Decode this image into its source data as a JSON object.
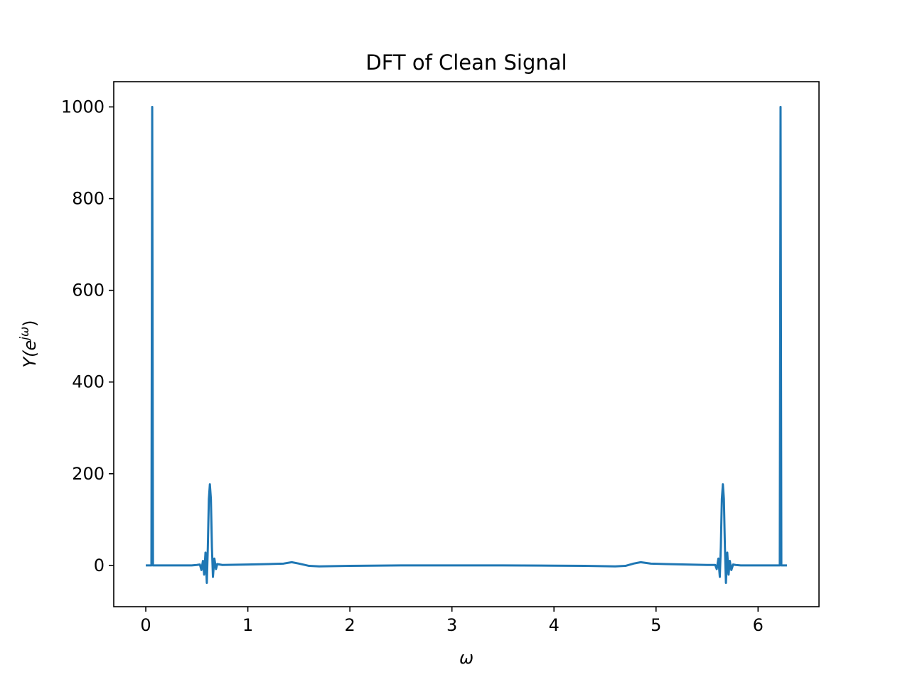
{
  "chart_data": {
    "type": "line",
    "title": "DFT of Clean Signal",
    "xlabel": "ω",
    "ylabel": {
      "base": "Y(e",
      "sup": "jω",
      "close": ")"
    },
    "xlim": [
      -0.314,
      6.597
    ],
    "ylim": [
      -90,
      1055
    ],
    "xticks": [
      0,
      1,
      2,
      3,
      4,
      5,
      6
    ],
    "yticks": [
      0,
      200,
      400,
      600,
      800,
      1000
    ],
    "grid": false,
    "color": "#1f77b4",
    "series": [
      {
        "values": [
          [
            0.0,
            0
          ],
          [
            0.055,
            0
          ],
          [
            0.0628,
            1000
          ],
          [
            0.0705,
            0
          ],
          [
            0.45,
            0
          ],
          [
            0.5,
            1
          ],
          [
            0.53,
            2
          ],
          [
            0.545,
            -10
          ],
          [
            0.56,
            10
          ],
          [
            0.572,
            -20
          ],
          [
            0.585,
            28
          ],
          [
            0.598,
            -38
          ],
          [
            0.608,
            40
          ],
          [
            0.618,
            145
          ],
          [
            0.628,
            177
          ],
          [
            0.638,
            145
          ],
          [
            0.648,
            40
          ],
          [
            0.658,
            -25
          ],
          [
            0.672,
            15
          ],
          [
            0.688,
            -8
          ],
          [
            0.7,
            3
          ],
          [
            0.75,
            1
          ],
          [
            1.0,
            2
          ],
          [
            1.2,
            3
          ],
          [
            1.35,
            4
          ],
          [
            1.43,
            7
          ],
          [
            1.5,
            4
          ],
          [
            1.6,
            -1
          ],
          [
            1.7,
            -2
          ],
          [
            2.0,
            -1
          ],
          [
            2.5,
            0
          ],
          [
            3.0,
            0
          ],
          [
            3.5,
            0
          ],
          [
            4.0,
            -0.5
          ],
          [
            4.3,
            -1
          ],
          [
            4.6,
            -2
          ],
          [
            4.7,
            -1
          ],
          [
            4.78,
            4
          ],
          [
            4.85,
            7
          ],
          [
            4.95,
            4
          ],
          [
            5.1,
            3
          ],
          [
            5.3,
            2
          ],
          [
            5.5,
            1
          ],
          [
            5.58,
            1
          ],
          [
            5.595,
            -8
          ],
          [
            5.611,
            15
          ],
          [
            5.625,
            -25
          ],
          [
            5.635,
            40
          ],
          [
            5.645,
            145
          ],
          [
            5.655,
            177
          ],
          [
            5.665,
            145
          ],
          [
            5.675,
            40
          ],
          [
            5.685,
            -38
          ],
          [
            5.698,
            28
          ],
          [
            5.711,
            -20
          ],
          [
            5.723,
            10
          ],
          [
            5.738,
            -10
          ],
          [
            5.755,
            2
          ],
          [
            5.78,
            1
          ],
          [
            5.83,
            0
          ],
          [
            6.2127,
            0
          ],
          [
            6.2204,
            1000
          ],
          [
            6.2282,
            0
          ],
          [
            6.283,
            0
          ]
        ]
      }
    ]
  }
}
